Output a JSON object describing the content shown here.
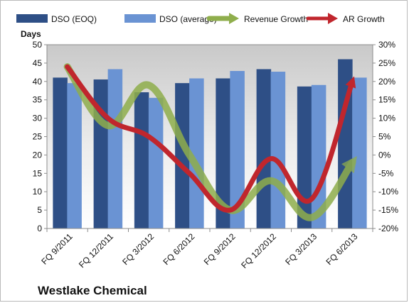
{
  "chart_data": {
    "type": "bar",
    "title": "Westlake Chemical",
    "ylabel": "Days",
    "categories": [
      "FQ 9/2011",
      "FQ 12/2011",
      "FQ 3/2012",
      "FQ 6/2012",
      "FQ 9/2012",
      "FQ 12/2012",
      "FQ 3/2013",
      "FQ 6/2013"
    ],
    "ylim": [
      0,
      50
    ],
    "yticks": [
      0,
      5,
      10,
      15,
      20,
      25,
      30,
      35,
      40,
      45,
      50
    ],
    "y2lim": [
      -20,
      30
    ],
    "y2ticks": [
      "-20%",
      "-15%",
      "-10%",
      "-5%",
      "0%",
      "5%",
      "10%",
      "15%",
      "20%",
      "25%",
      "30%"
    ],
    "series": [
      {
        "name": "DSO (EOQ)",
        "kind": "bar",
        "axis": "left",
        "color": "#2e4f86",
        "values": [
          41,
          40.5,
          37,
          39.5,
          40.8,
          43.3,
          38.6,
          46
        ]
      },
      {
        "name": "DSO (average)",
        "kind": "bar",
        "axis": "left",
        "color": "#6a93d3",
        "values": [
          39.5,
          43.3,
          35.5,
          40.8,
          42.8,
          42.6,
          39,
          41
        ]
      },
      {
        "name": "Revenue Growth",
        "kind": "line",
        "axis": "right",
        "unit": "%",
        "color": "#8fae4c",
        "values": [
          24,
          8,
          19,
          0,
          -15,
          -7,
          -17,
          -2
        ]
      },
      {
        "name": "AR Growth",
        "kind": "line",
        "axis": "right",
        "unit": "%",
        "color": "#c0262d",
        "values": [
          24,
          10,
          5,
          -5,
          -15,
          -1,
          -12,
          20
        ]
      }
    ],
    "legend_position": "top",
    "grid": false,
    "plot_background": "gradient-gray"
  }
}
